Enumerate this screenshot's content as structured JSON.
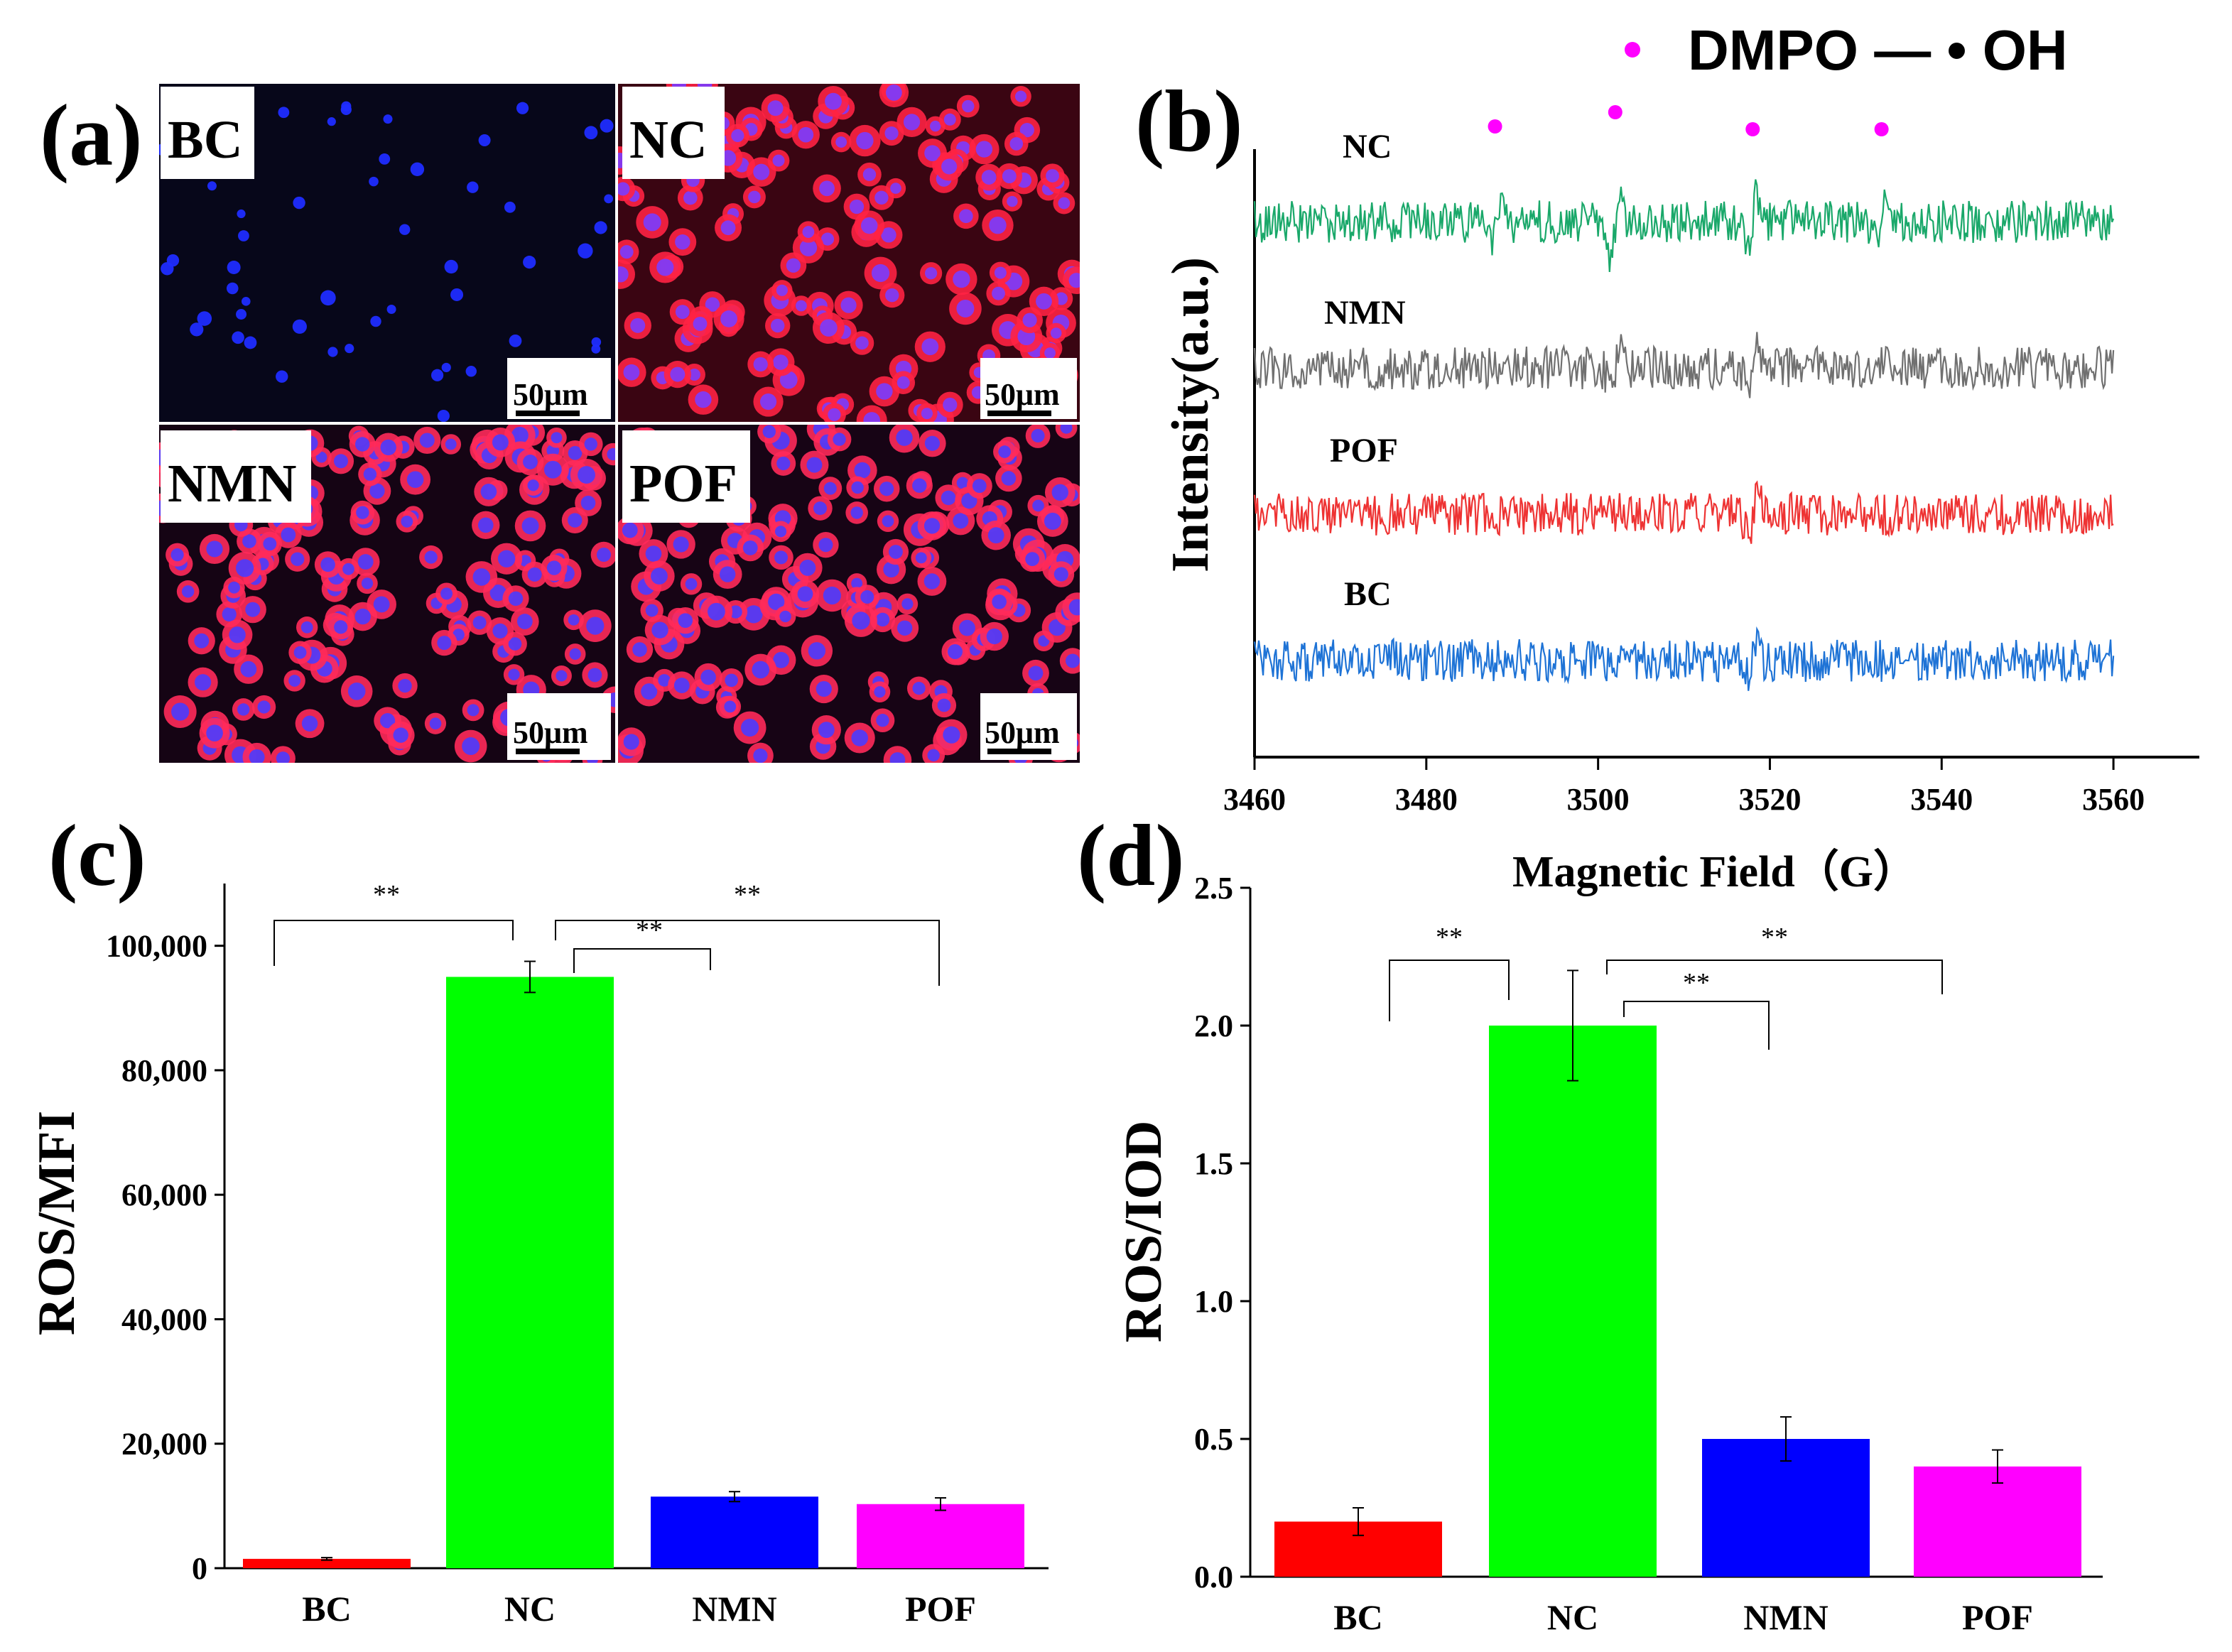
{
  "panels": {
    "a": {
      "label": "(a)",
      "tiles": [
        {
          "name": "BC",
          "scale": "50μm",
          "membrane": "#ff2a5a",
          "nucleus": "#1f2cff",
          "bg": "#07071a"
        },
        {
          "name": "NC",
          "scale": "50μm",
          "membrane": "#ff2244",
          "nucleus": "#7a3cff",
          "bg": "#3a0512"
        },
        {
          "name": "NMN",
          "scale": "50μm",
          "membrane": "#ff2a5a",
          "nucleus": "#4a3cff",
          "bg": "#150414"
        },
        {
          "name": "POF",
          "scale": "50μm",
          "membrane": "#ff2a5a",
          "nucleus": "#4a3cff",
          "bg": "#170415"
        }
      ]
    },
    "b": {
      "label": "(b)"
    },
    "c": {
      "label": "(c)"
    },
    "d": {
      "label": "(d)"
    }
  },
  "chart_data": [
    {
      "id": "b",
      "type": "line",
      "title": "",
      "xlabel": "Magnetic Field（G）",
      "ylabel": "Intensity(a.u.)",
      "xlim": [
        3460,
        3570
      ],
      "xticks": [
        3460,
        3480,
        3500,
        3520,
        3540,
        3560
      ],
      "legend": {
        "marker_color": "#ff00ff",
        "label": "DMPO — • OH",
        "position": "top-right"
      },
      "peak_markers_x": [
        3488,
        3502,
        3518,
        3533
      ],
      "series": [
        {
          "name": "NC",
          "color": "#1aa86a",
          "offset": 3,
          "peaks": [
            [
              3488,
              1.0
            ],
            [
              3502,
              2.2
            ],
            [
              3518,
              1.6
            ],
            [
              3533,
              1.0
            ]
          ],
          "noise": 1.0
        },
        {
          "name": "NMN",
          "color": "#707070",
          "offset": 2,
          "peaks": [
            [
              3502,
              0.9
            ],
            [
              3518,
              1.4
            ],
            [
              3533,
              0.4
            ]
          ],
          "noise": 1.0
        },
        {
          "name": "POF",
          "color": "#ee3333",
          "offset": 1,
          "peaks": [
            [
              3518,
              1.0
            ]
          ],
          "noise": 1.0
        },
        {
          "name": "BC",
          "color": "#1e73d6",
          "offset": 0,
          "peaks": [
            [
              3518,
              0.8
            ]
          ],
          "noise": 1.0
        }
      ],
      "x_range": [
        3460,
        3560
      ]
    },
    {
      "id": "c",
      "type": "bar",
      "title": "",
      "xlabel": "",
      "ylabel": "ROS/MFI",
      "categories": [
        "BC",
        "NC",
        "NMN",
        "POF"
      ],
      "values": [
        1500,
        95000,
        11500,
        10300
      ],
      "errors": [
        200,
        2500,
        800,
        1000
      ],
      "colors": [
        "#ff0000",
        "#00ff00",
        "#0000ff",
        "#ff00ff"
      ],
      "ylim": [
        0,
        110000
      ],
      "yticks": [
        0,
        20000,
        40000,
        60000,
        80000,
        100000
      ],
      "ytick_labels": [
        "0",
        "20,000",
        "40,000",
        "60,000",
        "80,000",
        "100,000"
      ],
      "significance": [
        {
          "from": 0,
          "to": 1,
          "label": "**"
        },
        {
          "from": 1,
          "to": 2,
          "label": "**"
        },
        {
          "from": 1,
          "to": 3,
          "label": "**"
        }
      ]
    },
    {
      "id": "d",
      "type": "bar",
      "title": "",
      "xlabel": "",
      "ylabel": "ROS/IOD",
      "categories": [
        "BC",
        "NC",
        "NMN",
        "POF"
      ],
      "values": [
        0.2,
        2.0,
        0.5,
        0.4
      ],
      "errors": [
        0.05,
        0.2,
        0.08,
        0.06
      ],
      "colors": [
        "#ff0000",
        "#00ff00",
        "#0000ff",
        "#ff00ff"
      ],
      "ylim": [
        0,
        2.5
      ],
      "yticks": [
        0,
        0.5,
        1.0,
        1.5,
        2.0,
        2.5
      ],
      "ytick_labels": [
        "0.0",
        "0.5",
        "1.0",
        "1.5",
        "2.0",
        "2.5"
      ],
      "significance": [
        {
          "from": 0,
          "to": 1,
          "label": "**"
        },
        {
          "from": 1,
          "to": 2,
          "label": "**"
        },
        {
          "from": 1,
          "to": 3,
          "label": "**"
        }
      ]
    }
  ]
}
